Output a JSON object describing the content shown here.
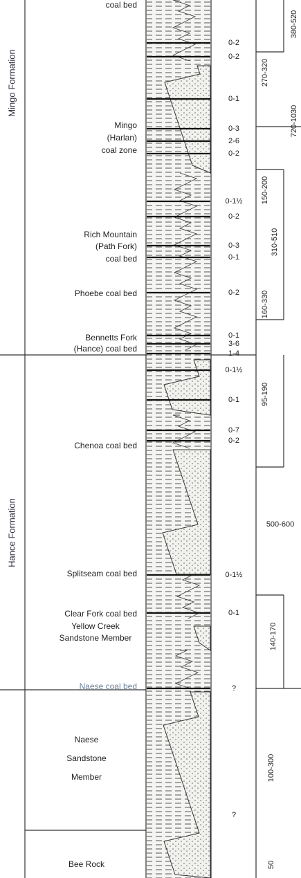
{
  "formations": [
    "Mingo Formation",
    "Hance Formation"
  ],
  "units": [
    [
      "coal bed"
    ],
    [
      "Mingo",
      "(Harlan)",
      "coal zone"
    ],
    [
      "Rich Mountain",
      "(Path Fork)",
      "coal bed"
    ],
    [
      "Phoebe coal bed"
    ],
    [
      "Bennetts Fork",
      "(Hance) coal bed"
    ],
    [
      "Chenoa coal bed"
    ],
    [
      "Splitseam coal bed"
    ],
    [
      "Clear Fork coal bed",
      "Yellow Creek",
      "Sandstone Member"
    ],
    [
      "Naese coal bed"
    ],
    [
      "Naese",
      "Sandstone",
      "Member"
    ],
    [
      "Bee Rock"
    ]
  ],
  "thicknesses": [
    "0-2",
    "0-2",
    "0-1",
    "0-3",
    "2-6",
    "0-2",
    "0-1½",
    "0-2",
    "0-3",
    "0-1",
    "0-2",
    "0-1",
    "3-6",
    "1-4",
    "0-1½",
    "0-1",
    "0-7",
    "0-2",
    "0-1½",
    "0-1",
    "?",
    "?"
  ],
  "intervals": [
    "380-520",
    "270-320",
    "720-1030",
    "150-200",
    "310-510",
    "160-330",
    "95-190",
    "500-600",
    "140-170",
    "100-300",
    "50"
  ]
}
